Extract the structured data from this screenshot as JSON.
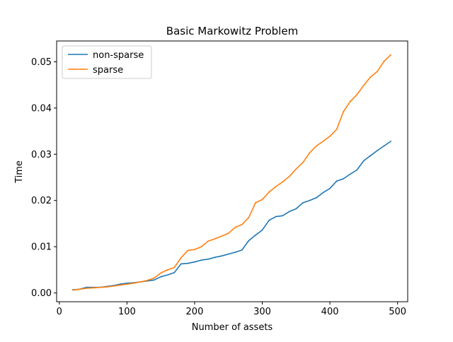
{
  "chart_data": {
    "type": "line",
    "title": "Basic Markowitz Problem",
    "xlabel": "Number of assets",
    "ylabel": "Time",
    "xlim": [
      -4,
      515
    ],
    "ylim": [
      -0.0019,
      0.0545
    ],
    "xticks": [
      0,
      100,
      200,
      300,
      400,
      500
    ],
    "xtick_labels": [
      "0",
      "100",
      "200",
      "300",
      "400",
      "500"
    ],
    "yticks": [
      0.0,
      0.01,
      0.02,
      0.03,
      0.04,
      0.05
    ],
    "ytick_labels": [
      "0.00",
      "0.01",
      "0.02",
      "0.03",
      "0.04",
      "0.05"
    ],
    "grid": false,
    "legend_position": "top-left",
    "x": [
      20,
      30,
      40,
      50,
      60,
      70,
      80,
      90,
      100,
      110,
      120,
      130,
      140,
      150,
      160,
      170,
      180,
      190,
      200,
      210,
      220,
      230,
      240,
      250,
      260,
      270,
      280,
      290,
      300,
      310,
      320,
      330,
      340,
      350,
      360,
      370,
      380,
      390,
      400,
      410,
      420,
      430,
      440,
      450,
      460,
      470,
      480,
      490
    ],
    "series": [
      {
        "name": "non-sparse",
        "color": "#1f77b4",
        "values": [
          0.0007,
          0.0008,
          0.0012,
          0.0012,
          0.0012,
          0.0014,
          0.0016,
          0.0019,
          0.0021,
          0.0022,
          0.0024,
          0.0026,
          0.0028,
          0.0035,
          0.0039,
          0.0044,
          0.0063,
          0.0064,
          0.0067,
          0.0071,
          0.0073,
          0.0077,
          0.008,
          0.0084,
          0.0088,
          0.0093,
          0.0113,
          0.0125,
          0.0136,
          0.0157,
          0.0165,
          0.0167,
          0.0176,
          0.0182,
          0.0195,
          0.02,
          0.0206,
          0.0217,
          0.0226,
          0.0242,
          0.0247,
          0.0257,
          0.0266,
          0.0286,
          0.0297,
          0.0308,
          0.0318,
          0.0328
        ]
      },
      {
        "name": "sparse",
        "color": "#ff7f0e",
        "values": [
          0.0006,
          0.0008,
          0.001,
          0.0011,
          0.0012,
          0.0013,
          0.0015,
          0.0017,
          0.0019,
          0.0021,
          0.0024,
          0.0027,
          0.0032,
          0.0043,
          0.005,
          0.0055,
          0.0076,
          0.0092,
          0.0094,
          0.01,
          0.0112,
          0.0117,
          0.0123,
          0.0129,
          0.0142,
          0.0148,
          0.0163,
          0.0195,
          0.0202,
          0.0218,
          0.023,
          0.024,
          0.0252,
          0.0268,
          0.0282,
          0.0303,
          0.0318,
          0.0328,
          0.0339,
          0.0354,
          0.0392,
          0.0414,
          0.0429,
          0.0449,
          0.0467,
          0.0479,
          0.0501,
          0.0515
        ]
      }
    ]
  }
}
